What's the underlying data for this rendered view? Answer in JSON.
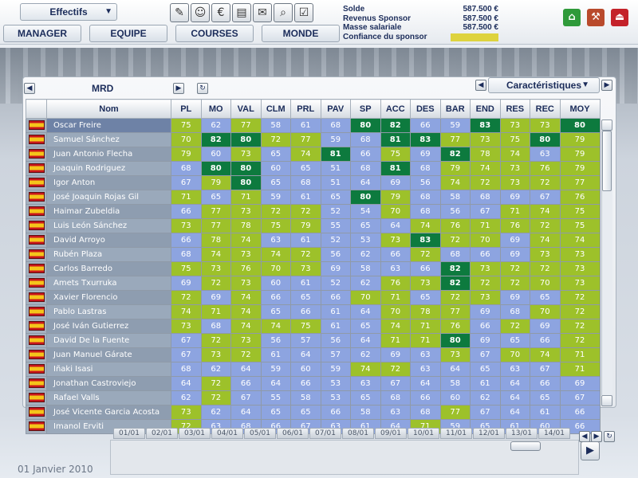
{
  "top": {
    "view_dropdown": "Effectifs",
    "nav_tabs": [
      "MANAGER",
      "EQUIPE",
      "COURSES",
      "MONDE"
    ],
    "finance": [
      {
        "label": "Solde",
        "value": "587.500 €"
      },
      {
        "label": "Revenus Sponsor",
        "value": "587.500 €"
      },
      {
        "label": "Masse salariale",
        "value": "587.500 €"
      },
      {
        "label": "Confiance du sponsor",
        "value": ""
      }
    ],
    "colors": {
      "home": "#2f9a3a",
      "tools": "#b94a2c",
      "exit": "#c4222a",
      "confidence": "#ded33e"
    }
  },
  "team": {
    "code": "MRD"
  },
  "characteristics_dropdown": "Caractéristiques",
  "table": {
    "columns": [
      "Nom",
      "PL",
      "MO",
      "VAL",
      "CLM",
      "PRL",
      "PAV",
      "SP",
      "ACC",
      "DES",
      "BAR",
      "END",
      "RES",
      "REC",
      "MOY"
    ],
    "rows": [
      {
        "name": "Oscar Freire",
        "stats": [
          75,
          62,
          77,
          58,
          61,
          68,
          80,
          82,
          66,
          59,
          83,
          73,
          73,
          80
        ]
      },
      {
        "name": "Samuel Sánchez",
        "stats": [
          70,
          82,
          80,
          72,
          77,
          59,
          68,
          81,
          83,
          77,
          73,
          75,
          80,
          79
        ]
      },
      {
        "name": "Juan Antonio Flecha",
        "stats": [
          79,
          60,
          73,
          65,
          74,
          81,
          66,
          75,
          69,
          82,
          78,
          74,
          63,
          79
        ]
      },
      {
        "name": "Joaquin Rodriguez",
        "stats": [
          68,
          80,
          80,
          60,
          65,
          51,
          68,
          81,
          68,
          79,
          74,
          73,
          76,
          79
        ]
      },
      {
        "name": "Igor Anton",
        "stats": [
          67,
          79,
          80,
          65,
          68,
          51,
          64,
          69,
          56,
          74,
          72,
          73,
          72,
          77
        ]
      },
      {
        "name": "José Joaquin Rojas Gil",
        "stats": [
          71,
          65,
          71,
          59,
          61,
          65,
          80,
          79,
          68,
          58,
          68,
          69,
          67,
          76
        ]
      },
      {
        "name": "Haimar Zubeldia",
        "stats": [
          66,
          77,
          73,
          72,
          72,
          52,
          54,
          70,
          68,
          56,
          67,
          71,
          74,
          75
        ]
      },
      {
        "name": "Luis León Sánchez",
        "stats": [
          73,
          77,
          78,
          75,
          79,
          55,
          65,
          64,
          74,
          76,
          71,
          76,
          72,
          75
        ]
      },
      {
        "name": "David Arroyo",
        "stats": [
          66,
          78,
          74,
          63,
          61,
          52,
          53,
          73,
          83,
          72,
          70,
          69,
          74,
          74
        ]
      },
      {
        "name": "Rubén Plaza",
        "stats": [
          68,
          74,
          73,
          74,
          72,
          56,
          62,
          66,
          72,
          68,
          66,
          69,
          73,
          73
        ]
      },
      {
        "name": "Carlos Barredo",
        "stats": [
          75,
          73,
          76,
          70,
          73,
          69,
          58,
          63,
          66,
          82,
          73,
          72,
          72,
          73
        ]
      },
      {
        "name": "Amets Txurruka",
        "stats": [
          69,
          72,
          73,
          60,
          61,
          52,
          62,
          76,
          73,
          82,
          72,
          72,
          70,
          73
        ]
      },
      {
        "name": "Xavier Florencio",
        "stats": [
          72,
          69,
          74,
          66,
          65,
          66,
          70,
          71,
          65,
          72,
          73,
          69,
          65,
          72
        ]
      },
      {
        "name": "Pablo Lastras",
        "stats": [
          74,
          71,
          74,
          65,
          66,
          61,
          64,
          70,
          78,
          77,
          69,
          68,
          70,
          72
        ]
      },
      {
        "name": "José Iván Gutierrez",
        "stats": [
          73,
          68,
          74,
          74,
          75,
          61,
          65,
          74,
          71,
          76,
          66,
          72,
          69,
          72
        ]
      },
      {
        "name": "David De la Fuente",
        "stats": [
          67,
          72,
          73,
          56,
          57,
          56,
          64,
          71,
          71,
          80,
          69,
          65,
          66,
          72
        ]
      },
      {
        "name": "Juan Manuel Gárate",
        "stats": [
          67,
          73,
          72,
          61,
          64,
          57,
          62,
          69,
          63,
          73,
          67,
          70,
          74,
          71
        ]
      },
      {
        "name": "Iñaki Isasi",
        "stats": [
          68,
          62,
          64,
          59,
          60,
          59,
          74,
          72,
          63,
          64,
          65,
          63,
          67,
          71
        ]
      },
      {
        "name": "Jonathan Castroviejo",
        "stats": [
          64,
          72,
          66,
          64,
          66,
          53,
          63,
          67,
          64,
          58,
          61,
          64,
          66,
          69
        ]
      },
      {
        "name": "Rafael Valls",
        "stats": [
          62,
          72,
          67,
          55,
          58,
          53,
          65,
          68,
          66,
          60,
          62,
          64,
          65,
          67
        ]
      },
      {
        "name": "José Vicente Garcia Acosta",
        "stats": [
          73,
          62,
          64,
          65,
          65,
          66,
          58,
          63,
          68,
          77,
          67,
          64,
          61,
          66
        ]
      },
      {
        "name": "Imanol Erviti",
        "stats": [
          72,
          63,
          68,
          66,
          67,
          63,
          61,
          64,
          71,
          59,
          65,
          61,
          60,
          66
        ]
      }
    ],
    "selected_row": 0,
    "flag_icon": "spain-flag-icon"
  },
  "timeline": {
    "days": [
      "01/01",
      "02/01",
      "03/01",
      "04/01",
      "05/01",
      "06/01",
      "07/01",
      "08/01",
      "09/01",
      "10/01",
      "11/01",
      "12/01",
      "13/01",
      "14/01"
    ],
    "current_date": "01 Janvier 2010"
  }
}
